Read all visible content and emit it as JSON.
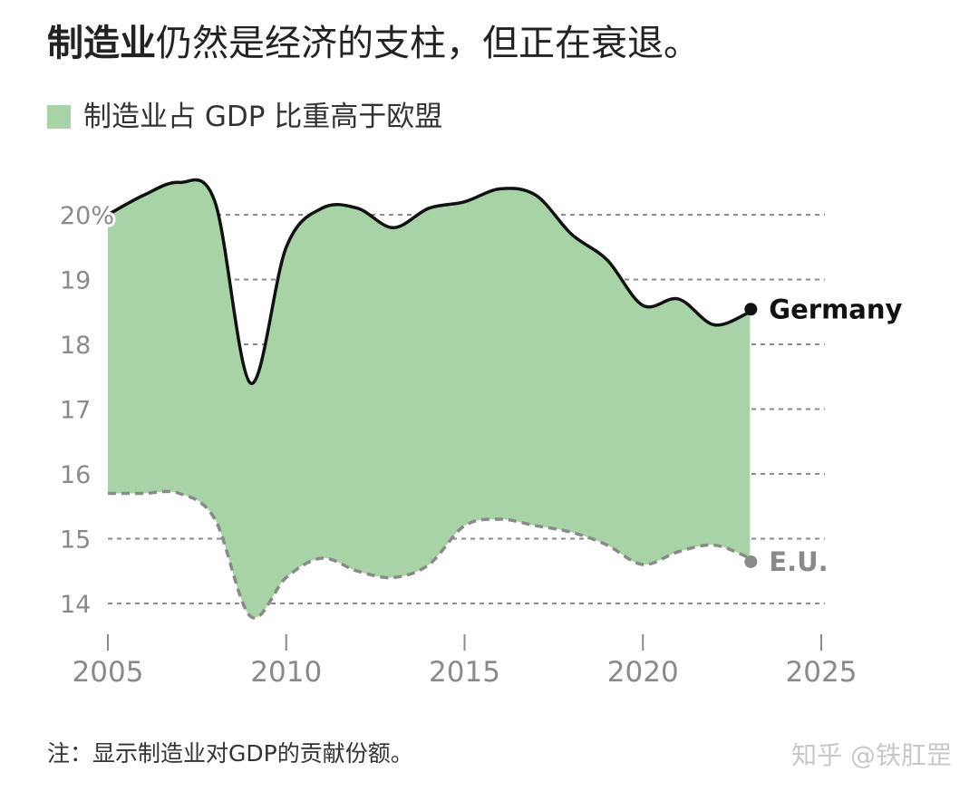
{
  "header": {
    "title_bold": "制造业",
    "title_rest": "仍然是经济的支柱，但正在衰退。"
  },
  "legend": {
    "label": "制造业占 GDP 比重高于欧盟",
    "color": "#a7d3a6"
  },
  "footer": {
    "note": "注：显示制造业对GDP的贡献份额。",
    "watermark": "知乎 @铁肛罡"
  },
  "colors": {
    "fill": "#a7d3a6",
    "germany": "#111111",
    "eu": "#8a8a8a",
    "grid": "#8a8a8a"
  },
  "chart_data": {
    "type": "area",
    "x": [
      2005,
      2006,
      2007,
      2008,
      2009,
      2010,
      2011,
      2012,
      2013,
      2014,
      2015,
      2016,
      2017,
      2018,
      2019,
      2020,
      2021,
      2022,
      2023
    ],
    "series": [
      {
        "name": "Germany",
        "style": "solid",
        "values": [
          20.0,
          20.3,
          20.5,
          20.2,
          17.4,
          19.5,
          20.1,
          20.1,
          19.8,
          20.1,
          20.2,
          20.4,
          20.3,
          19.7,
          19.3,
          18.6,
          18.7,
          18.3,
          18.5
        ]
      },
      {
        "name": "E.U.",
        "style": "dashed",
        "values": [
          15.7,
          15.7,
          15.7,
          15.3,
          13.8,
          14.4,
          14.7,
          14.5,
          14.4,
          14.6,
          15.2,
          15.3,
          15.2,
          15.1,
          14.9,
          14.6,
          14.8,
          14.9,
          14.7
        ]
      }
    ],
    "yticks": [
      {
        "value": 20,
        "label": "20%"
      },
      {
        "value": 19,
        "label": "19"
      },
      {
        "value": 18,
        "label": "18"
      },
      {
        "value": 17,
        "label": "17"
      },
      {
        "value": 16,
        "label": "16"
      },
      {
        "value": 15,
        "label": "15"
      },
      {
        "value": 14,
        "label": "14"
      }
    ],
    "xticks": [
      2005,
      2010,
      2015,
      2020,
      2025
    ],
    "xlim": [
      2005,
      2025
    ],
    "ylim": [
      13.5,
      20.6
    ],
    "grid": "dashed-horizontal",
    "series_labels": "end-of-line",
    "title": "",
    "xlabel": "",
    "ylabel": ""
  }
}
